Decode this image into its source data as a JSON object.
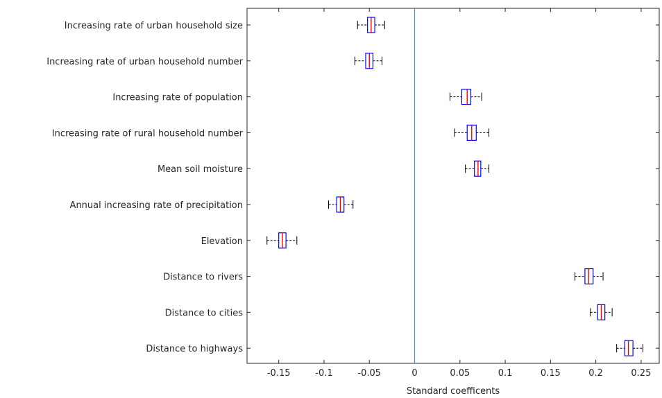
{
  "chart_data": {
    "type": "boxplot",
    "orientation": "horizontal",
    "xlabel": "Standard coefficents",
    "xlim": [
      -0.185,
      0.27
    ],
    "xticks": [
      -0.15,
      -0.1,
      -0.05,
      0,
      0.05,
      0.1,
      0.15,
      0.2,
      0.25
    ],
    "xtick_labels": [
      "-0.15",
      "-0.1",
      "-0.05",
      "0",
      "0.05",
      "0.1",
      "0.15",
      "0.2",
      "0.25"
    ],
    "reference_line_x": 0,
    "grid": false,
    "colors": {
      "box": "#0000ff",
      "median": "#ff0000",
      "whisker": "#000000",
      "reference": "#4a8fd0",
      "axes": "#262626"
    },
    "categories": [
      "Increasing rate of urban household size",
      "Increasing rate of urban household number",
      "Increasing rate of population",
      "Increasing rate of rural household number",
      "Mean soil moisture",
      "Annual increasing rate of precipitation",
      "Elevation",
      "Distance to rivers",
      "Distance to cities",
      "Distance to highways"
    ],
    "boxes": [
      {
        "min": -0.063,
        "q1": -0.052,
        "median": -0.048,
        "q3": -0.044,
        "max": -0.033
      },
      {
        "min": -0.066,
        "q1": -0.054,
        "median": -0.05,
        "q3": -0.046,
        "max": -0.036
      },
      {
        "min": 0.039,
        "q1": 0.052,
        "median": 0.058,
        "q3": 0.062,
        "max": 0.074
      },
      {
        "min": 0.044,
        "q1": 0.058,
        "median": 0.063,
        "q3": 0.068,
        "max": 0.082
      },
      {
        "min": 0.056,
        "q1": 0.066,
        "median": 0.07,
        "q3": 0.073,
        "max": 0.082
      },
      {
        "min": -0.095,
        "q1": -0.086,
        "median": -0.082,
        "q3": -0.078,
        "max": -0.068
      },
      {
        "min": -0.163,
        "q1": -0.15,
        "median": -0.146,
        "q3": -0.142,
        "max": -0.13
      },
      {
        "min": 0.177,
        "q1": 0.188,
        "median": 0.192,
        "q3": 0.197,
        "max": 0.208
      },
      {
        "min": 0.194,
        "q1": 0.202,
        "median": 0.206,
        "q3": 0.21,
        "max": 0.218
      },
      {
        "min": 0.223,
        "q1": 0.232,
        "median": 0.236,
        "q3": 0.241,
        "max": 0.252
      }
    ]
  }
}
